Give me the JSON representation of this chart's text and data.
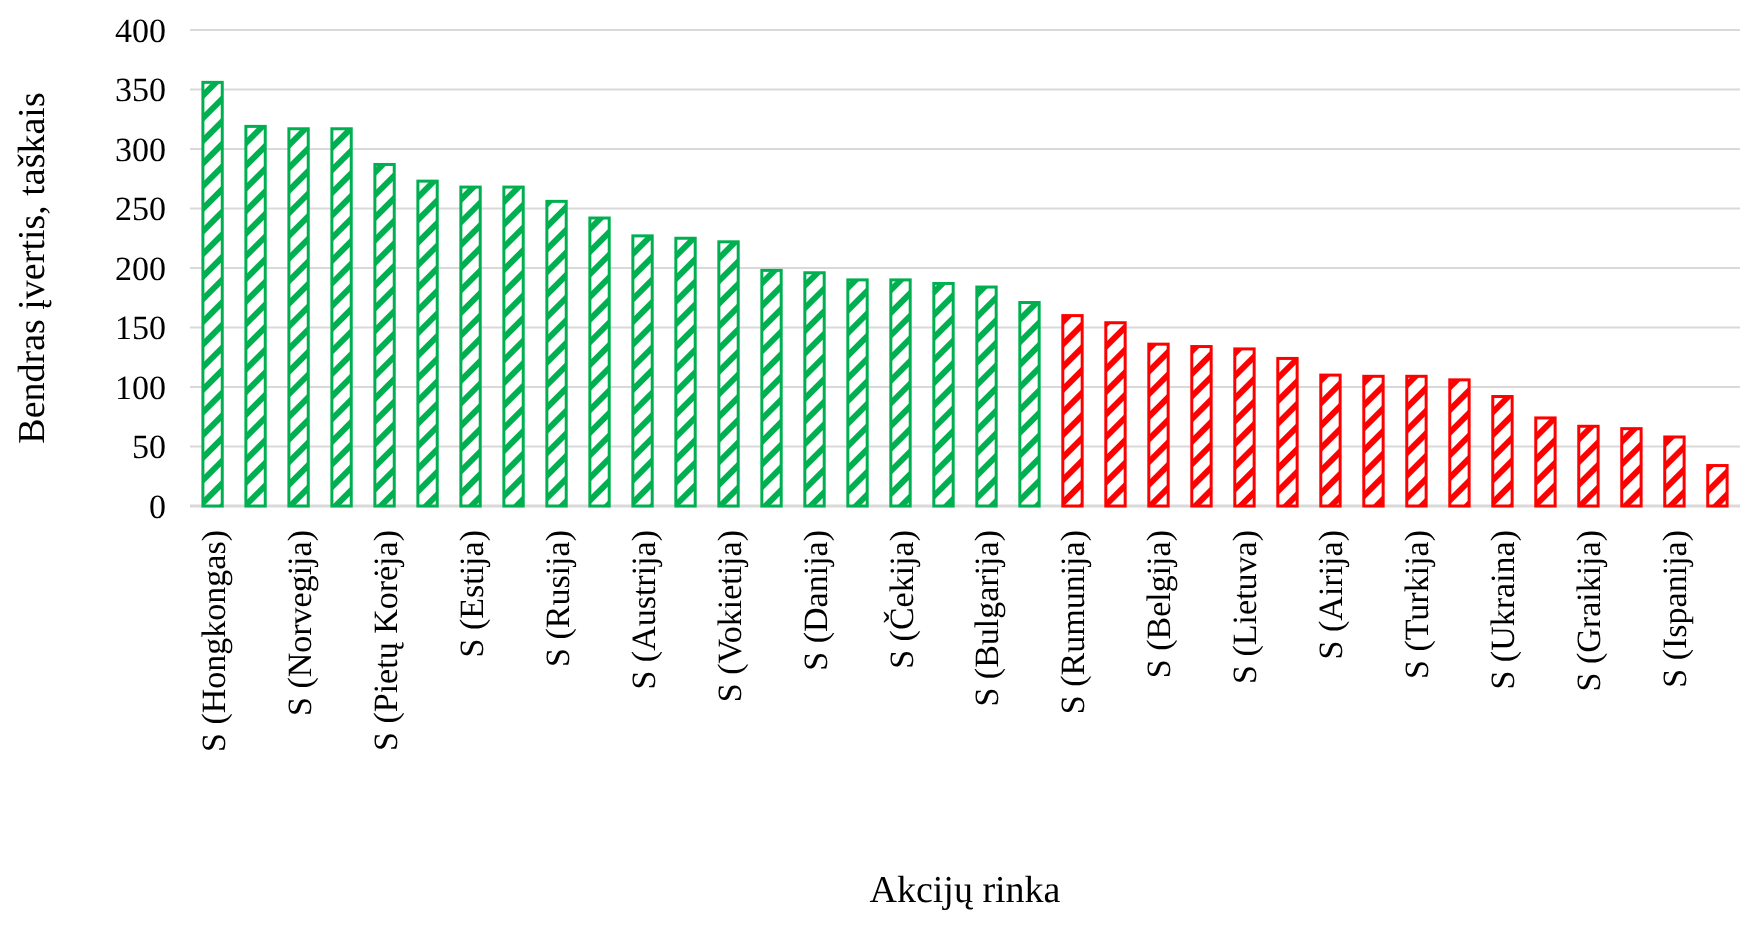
{
  "chart_data": {
    "type": "bar",
    "xlabel": "Akcijų rinka",
    "ylabel": "Bendras įvertis, taškais",
    "categories": [
      "S (Hongkongas)",
      null,
      "S (Norvegija)",
      null,
      "S (Pietų Korėja)",
      null,
      "S (Estija)",
      null,
      "S (Rusija)",
      null,
      "S (Austrija)",
      null,
      "S (Vokietija)",
      null,
      "S (Danija)",
      null,
      "S (Čekija)",
      null,
      "S (Bulgarija)",
      null,
      "S (Rumunija)",
      null,
      "S (Belgija)",
      null,
      "S (Lietuva)",
      null,
      "S (Airija)",
      null,
      "S (Turkija)",
      null,
      "S (Ukraina)",
      null,
      "S (Graikija)",
      null,
      "S (Ispanija)",
      null
    ],
    "values": [
      356,
      319,
      317,
      317,
      287,
      273,
      268,
      268,
      256,
      242,
      227,
      225,
      222,
      198,
      196,
      190,
      190,
      187,
      184,
      171,
      160,
      154,
      136,
      134,
      132,
      124,
      110,
      109,
      109,
      106,
      92,
      74,
      67,
      65,
      58,
      34
    ],
    "colors": [
      "#00b050",
      "#00b050",
      "#00b050",
      "#00b050",
      "#00b050",
      "#00b050",
      "#00b050",
      "#00b050",
      "#00b050",
      "#00b050",
      "#00b050",
      "#00b050",
      "#00b050",
      "#00b050",
      "#00b050",
      "#00b050",
      "#00b050",
      "#00b050",
      "#00b050",
      "#00b050",
      "#ff0000",
      "#ff0000",
      "#ff0000",
      "#ff0000",
      "#ff0000",
      "#ff0000",
      "#ff0000",
      "#ff0000",
      "#ff0000",
      "#ff0000",
      "#ff0000",
      "#ff0000",
      "#ff0000",
      "#ff0000",
      "#ff0000",
      "#ff0000"
    ],
    "ylim": [
      0,
      400
    ],
    "yticks": [
      0,
      50,
      100,
      150,
      200,
      250,
      300,
      350,
      400
    ],
    "grid": "y"
  }
}
